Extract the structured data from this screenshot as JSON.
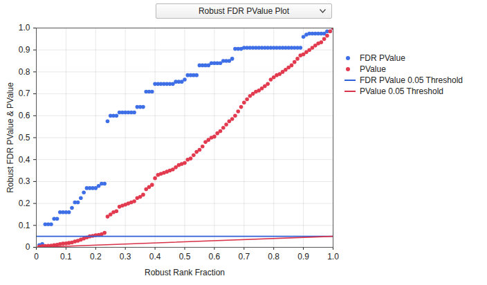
{
  "chart_data": {
    "type": "scatter",
    "title": "Robust FDR PValue Plot",
    "x_label": "Robust Rank Fraction",
    "y_label": "Robust FDR PValue & PValue",
    "x": [
      0.01,
      0.02,
      0.03,
      0.04,
      0.05,
      0.06,
      0.07,
      0.08,
      0.09,
      0.1,
      0.11,
      0.12,
      0.13,
      0.14,
      0.15,
      0.16,
      0.17,
      0.18,
      0.19,
      0.2,
      0.21,
      0.22,
      0.23,
      0.24,
      0.25,
      0.26,
      0.27,
      0.28,
      0.29,
      0.3,
      0.31,
      0.32,
      0.33,
      0.34,
      0.35,
      0.36,
      0.37,
      0.38,
      0.39,
      0.4,
      0.41,
      0.42,
      0.43,
      0.44,
      0.45,
      0.46,
      0.47,
      0.48,
      0.49,
      0.5,
      0.51,
      0.52,
      0.53,
      0.54,
      0.55,
      0.56,
      0.57,
      0.58,
      0.59,
      0.6,
      0.61,
      0.62,
      0.63,
      0.64,
      0.65,
      0.66,
      0.67,
      0.68,
      0.69,
      0.7,
      0.71,
      0.72,
      0.73,
      0.74,
      0.75,
      0.76,
      0.77,
      0.78,
      0.79,
      0.8,
      0.81,
      0.82,
      0.83,
      0.84,
      0.85,
      0.86,
      0.87,
      0.88,
      0.89,
      0.9,
      0.91,
      0.92,
      0.93,
      0.94,
      0.95,
      0.96,
      0.97,
      0.98,
      0.99,
      1.0
    ],
    "series": [
      {
        "name": "FDR PValue",
        "type": "scatter",
        "marker": "circle",
        "color": "#3f6fe6",
        "values": [
          0.01,
          0.015,
          0.105,
          0.105,
          0.105,
          0.13,
          0.13,
          0.16,
          0.16,
          0.16,
          0.16,
          0.18,
          0.205,
          0.205,
          0.225,
          0.25,
          0.27,
          0.27,
          0.27,
          0.27,
          0.28,
          0.29,
          0.29,
          0.575,
          0.6,
          0.6,
          0.6,
          0.615,
          0.615,
          0.615,
          0.615,
          0.615,
          0.615,
          0.64,
          0.64,
          0.64,
          0.71,
          0.71,
          0.71,
          0.745,
          0.745,
          0.745,
          0.745,
          0.745,
          0.745,
          0.745,
          0.755,
          0.755,
          0.755,
          0.765,
          0.785,
          0.785,
          0.785,
          0.785,
          0.83,
          0.83,
          0.83,
          0.83,
          0.84,
          0.84,
          0.84,
          0.84,
          0.85,
          0.85,
          0.85,
          0.86,
          0.905,
          0.905,
          0.905,
          0.91,
          0.91,
          0.91,
          0.91,
          0.91,
          0.91,
          0.91,
          0.91,
          0.91,
          0.91,
          0.91,
          0.91,
          0.91,
          0.91,
          0.91,
          0.91,
          0.91,
          0.91,
          0.91,
          0.91,
          0.96,
          0.97,
          0.975,
          0.975,
          0.975,
          0.975,
          0.975,
          0.975,
          0.985,
          0.985,
          1.0
        ]
      },
      {
        "name": "PValue",
        "type": "scatter",
        "marker": "circle",
        "color": "#e23a4e",
        "values": [
          0.003,
          0.005,
          0.006,
          0.007,
          0.008,
          0.01,
          0.012,
          0.015,
          0.017,
          0.018,
          0.02,
          0.022,
          0.027,
          0.03,
          0.035,
          0.04,
          0.045,
          0.05,
          0.052,
          0.055,
          0.057,
          0.06,
          0.066,
          0.14,
          0.15,
          0.16,
          0.165,
          0.185,
          0.19,
          0.195,
          0.2,
          0.205,
          0.21,
          0.225,
          0.23,
          0.24,
          0.265,
          0.275,
          0.285,
          0.315,
          0.33,
          0.335,
          0.34,
          0.345,
          0.35,
          0.355,
          0.365,
          0.375,
          0.38,
          0.385,
          0.4,
          0.405,
          0.42,
          0.435,
          0.445,
          0.46,
          0.48,
          0.49,
          0.5,
          0.505,
          0.52,
          0.53,
          0.545,
          0.56,
          0.575,
          0.585,
          0.6,
          0.62,
          0.64,
          0.66,
          0.675,
          0.69,
          0.7,
          0.71,
          0.715,
          0.725,
          0.735,
          0.745,
          0.765,
          0.775,
          0.785,
          0.79,
          0.8,
          0.81,
          0.82,
          0.83,
          0.845,
          0.86,
          0.875,
          0.88,
          0.89,
          0.9,
          0.91,
          0.92,
          0.93,
          0.935,
          0.95,
          0.965,
          0.985,
          1.0
        ]
      },
      {
        "name": "FDR PValue 0.05 Threshold",
        "type": "line",
        "line_style": "solid",
        "color": "#2d5fd8",
        "x": [
          0,
          1
        ],
        "values": [
          0.05,
          0.05
        ]
      },
      {
        "name": "PValue 0.05 Threshold",
        "type": "line",
        "line_style": "solid",
        "color": "#d8334a",
        "x": [
          0,
          1
        ],
        "values": [
          0,
          0.05
        ]
      }
    ],
    "xlim": [
      0,
      1
    ],
    "xticks": [
      0,
      0.1,
      0.2,
      0.3,
      0.4,
      0.5,
      0.6,
      0.7,
      0.8,
      0.9,
      {
        "value": 1,
        "label": "1.0"
      }
    ],
    "ylim": [
      0,
      1
    ],
    "yticks": [
      0,
      0.1,
      0.2,
      0.3,
      0.4,
      0.5,
      0.6,
      0.7,
      0.8,
      0.9,
      {
        "value": 1,
        "label": "1.0"
      }
    ],
    "grid": true,
    "legend": "right"
  }
}
